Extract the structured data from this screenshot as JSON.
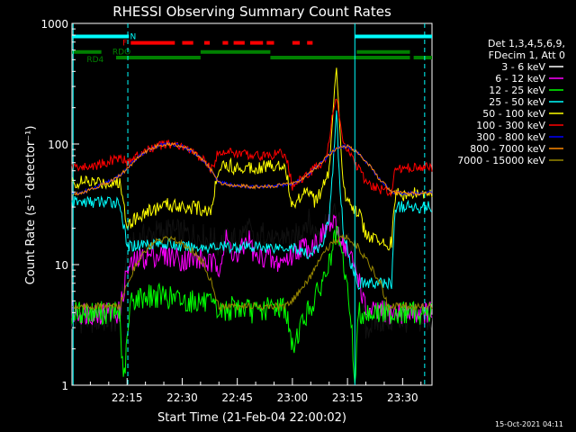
{
  "chart_data": {
    "type": "line",
    "title": "RHESSI Observing Summary Count Rates",
    "xlabel": "Start Time (21-Feb-04 22:00:02)",
    "ylabel": "Count Rate (s⁻¹ detector⁻¹)",
    "y_scale": "log",
    "x_unit": "minutes after 22:00",
    "xlim": [
      0,
      98
    ],
    "ylim": [
      1,
      1000
    ],
    "x_ticks": [
      {
        "x": 15,
        "label": "22:15"
      },
      {
        "x": 30,
        "label": "22:30"
      },
      {
        "x": 45,
        "label": "22:45"
      },
      {
        "x": 60,
        "label": "23:00"
      },
      {
        "x": 75,
        "label": "23:15"
      },
      {
        "x": 90,
        "label": "23:30"
      }
    ],
    "y_ticks": [
      {
        "y": 1,
        "label": "1"
      },
      {
        "y": 10,
        "label": "10"
      },
      {
        "y": 100,
        "label": "100"
      },
      {
        "y": 1000,
        "label": "1000"
      }
    ],
    "legend_title": [
      "Det 1,3,4,5,6,9,",
      "FDecim 1, Att 0"
    ],
    "legend_position": "right",
    "timestamp": "15-Oct-2021 04:11",
    "series": [
      {
        "name": "3 - 6 keV",
        "color": "#000000",
        "x": [
          0,
          5,
          10,
          13,
          15,
          18,
          22,
          26,
          30,
          35,
          38,
          40,
          45,
          48,
          50,
          53,
          55,
          58,
          60,
          62,
          64,
          66,
          68,
          70,
          72,
          74,
          76,
          78,
          80,
          84,
          87,
          90,
          93,
          96
        ],
        "y": [
          3.5,
          3.5,
          3.5,
          3.5,
          12,
          16,
          18,
          19,
          18,
          17,
          16,
          15,
          16,
          20,
          14,
          20,
          14,
          18,
          15,
          19,
          24,
          18,
          20,
          25,
          26,
          17,
          13,
          9,
          3,
          3.5,
          3.5,
          3.5,
          3.5,
          3.5
        ]
      },
      {
        "name": "6 - 12 keV",
        "color": "#ff00ff",
        "x": [
          0,
          5,
          10,
          13,
          15,
          18,
          22,
          26,
          30,
          35,
          38,
          40,
          42,
          45,
          48,
          50,
          53,
          55,
          58,
          60,
          62,
          64,
          66,
          68,
          70,
          72,
          74,
          76,
          78,
          80,
          84,
          87,
          90,
          93,
          96
        ],
        "y": [
          4,
          4,
          4,
          4,
          9,
          11,
          12,
          12,
          11,
          11,
          10,
          10,
          16,
          11,
          17,
          11,
          12,
          10,
          11,
          12,
          14,
          14,
          15,
          17,
          22,
          20,
          15,
          11,
          8,
          4,
          4,
          4,
          4,
          4,
          4
        ]
      },
      {
        "name": "12 - 25 keV",
        "color": "#00ff00",
        "x": [
          0,
          5,
          10,
          13,
          14,
          16,
          20,
          25,
          30,
          35,
          38,
          40,
          45,
          50,
          55,
          58,
          60,
          62,
          64,
          66,
          68,
          70,
          72,
          74,
          76,
          77,
          78,
          80,
          84,
          87,
          90,
          93,
          96
        ],
        "y": [
          4,
          4,
          4,
          4,
          1,
          5,
          5.5,
          5.5,
          5,
          5,
          4.5,
          4,
          4.5,
          4,
          4.5,
          4.5,
          2,
          3,
          4,
          5,
          7,
          10,
          18,
          10,
          3.5,
          1,
          4,
          4,
          4,
          4,
          4,
          4,
          4
        ]
      },
      {
        "name": "25 - 50 keV",
        "color": "#00ffff",
        "x": [
          0,
          5,
          10,
          13,
          15,
          20,
          25,
          30,
          35,
          38,
          40,
          45,
          50,
          55,
          58,
          60,
          62,
          64,
          66,
          68,
          70,
          71,
          72,
          73,
          74,
          76,
          78,
          80,
          84,
          87,
          88,
          90,
          93,
          96
        ],
        "y": [
          33,
          33,
          33,
          33,
          14,
          15,
          15,
          14,
          14,
          14,
          14,
          14,
          14,
          14,
          14,
          14,
          13,
          12,
          13,
          14,
          25,
          60,
          180,
          40,
          18,
          10,
          7,
          7,
          7,
          7,
          30,
          30,
          30,
          30
        ]
      },
      {
        "name": "50 - 100 keV",
        "color": "#ffff00",
        "x": [
          0,
          5,
          10,
          13,
          15,
          20,
          25,
          30,
          35,
          38,
          40,
          45,
          50,
          55,
          58,
          60,
          62,
          64,
          66,
          68,
          70,
          71,
          72,
          73,
          74,
          76,
          78,
          80,
          84,
          87,
          88,
          90,
          93,
          96
        ],
        "y": [
          48,
          48,
          48,
          48,
          22,
          27,
          31,
          31,
          29,
          28,
          68,
          64,
          65,
          66,
          68,
          30,
          36,
          45,
          34,
          40,
          60,
          180,
          400,
          110,
          40,
          32,
          27,
          18,
          15,
          15,
          38,
          38,
          38,
          38
        ]
      },
      {
        "name": "100 - 300 keV",
        "color": "#ff0000",
        "x": [
          0,
          3,
          6,
          9,
          12,
          13,
          15,
          18,
          21,
          24,
          27,
          30,
          33,
          36,
          38,
          40,
          44,
          48,
          52,
          56,
          58,
          60,
          63,
          66,
          69,
          70,
          71,
          72,
          73,
          74,
          76,
          78,
          80,
          84,
          87,
          88,
          90,
          93,
          96
        ],
        "y": [
          65,
          64,
          66,
          70,
          75,
          80,
          70,
          80,
          90,
          97,
          100,
          95,
          85,
          72,
          62,
          88,
          84,
          82,
          80,
          82,
          85,
          45,
          52,
          62,
          75,
          110,
          180,
          250,
          150,
          95,
          80,
          62,
          48,
          42,
          40,
          63,
          63,
          64,
          64
        ]
      },
      {
        "name": "300 - 800 keV",
        "color": "#0000ff",
        "x": [
          0,
          3,
          6,
          9,
          12,
          15,
          18,
          21,
          24,
          27,
          30,
          33,
          36,
          38,
          40,
          43,
          46,
          49,
          52,
          55,
          58,
          60,
          63,
          66,
          69,
          72,
          75,
          78,
          81,
          84,
          87,
          90,
          93,
          96
        ],
        "y": [
          38,
          40,
          43,
          47,
          52,
          62,
          78,
          90,
          98,
          100,
          96,
          86,
          72,
          60,
          48,
          46,
          45,
          44,
          44,
          45,
          46,
          47,
          52,
          62,
          76,
          92,
          96,
          84,
          66,
          50,
          40,
          39,
          39,
          39
        ]
      },
      {
        "name": "800 - 7000 keV",
        "color": "#ff8800",
        "x": [
          0,
          3,
          6,
          9,
          12,
          15,
          18,
          21,
          24,
          27,
          30,
          33,
          36,
          38,
          40,
          43,
          46,
          49,
          52,
          55,
          58,
          60,
          63,
          66,
          69,
          72,
          75,
          78,
          81,
          84,
          87,
          90,
          93,
          96
        ],
        "y": [
          38,
          40,
          43,
          47,
          52,
          62,
          78,
          90,
          98,
          100,
          96,
          86,
          72,
          60,
          48,
          46,
          45,
          44,
          44,
          45,
          46,
          47,
          52,
          62,
          76,
          92,
          96,
          84,
          66,
          50,
          40,
          39,
          39,
          39
        ]
      },
      {
        "name": "7000 - 15000 keV",
        "color": "#998800",
        "x": [
          0,
          5,
          10,
          13,
          15,
          18,
          21,
          24,
          27,
          30,
          33,
          36,
          38,
          40,
          44,
          48,
          52,
          56,
          58,
          60,
          63,
          66,
          69,
          72,
          75,
          78,
          81,
          84,
          86,
          88,
          90,
          93,
          96
        ],
        "y": [
          4.5,
          4.5,
          4.5,
          4.5,
          7,
          11,
          14,
          16,
          16,
          15,
          13,
          10,
          7,
          4.5,
          4.5,
          4.5,
          4.5,
          4.5,
          4.5,
          5,
          6.5,
          9,
          13,
          16,
          17,
          14,
          10,
          7,
          4.5,
          4.5,
          4.5,
          4.5,
          4.5
        ]
      }
    ],
    "status_bars": [
      {
        "name": "N",
        "color": "#00ffff",
        "level_y": 780,
        "segments": [
          [
            0,
            15.5
          ],
          [
            77,
            98
          ]
        ]
      },
      {
        "name": "F",
        "color": "#ff0000",
        "level_y": 690,
        "segments": [
          [
            16,
            28
          ],
          [
            30,
            33
          ],
          [
            36,
            37.5
          ],
          [
            41,
            42.5
          ],
          [
            44,
            47
          ],
          [
            48.5,
            52
          ],
          [
            53,
            55
          ],
          [
            60,
            62
          ],
          [
            64,
            65.5
          ]
        ]
      },
      {
        "name": "RDO",
        "color": "#008000",
        "level_y": 580,
        "segments": [
          [
            0,
            8
          ],
          [
            35,
            54
          ],
          [
            77.5,
            92
          ]
        ]
      },
      {
        "name": "RD4",
        "color": "#008000",
        "level_y": 520,
        "segments": [
          [
            12,
            35
          ],
          [
            54,
            92
          ],
          [
            93,
            98
          ]
        ]
      }
    ],
    "vertical_markers": [
      {
        "x": 0.3,
        "color": "#00ffff",
        "style": "solid"
      },
      {
        "x": 15.2,
        "color": "#00ffff",
        "style": "dashed"
      },
      {
        "x": 77,
        "color": "#00ffff",
        "style": "solid"
      },
      {
        "x": 96,
        "color": "#00ffff",
        "style": "dashed"
      }
    ]
  }
}
